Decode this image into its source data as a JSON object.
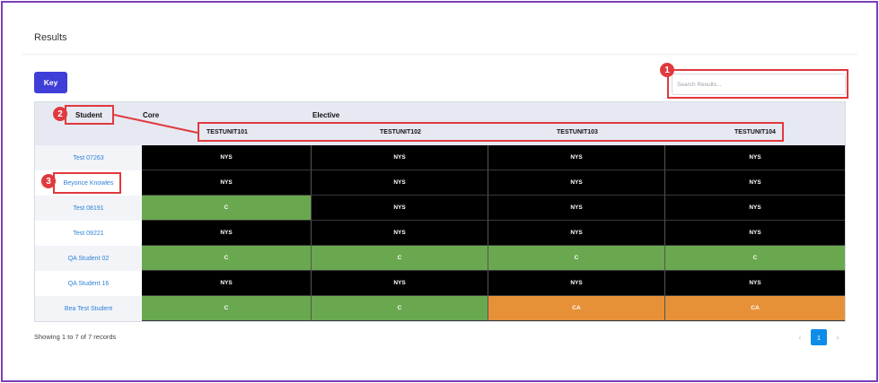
{
  "page": {
    "title": "Results"
  },
  "toolbar": {
    "key_label": "Key"
  },
  "search": {
    "placeholder": "Search Results...",
    "value": ""
  },
  "table": {
    "headers": {
      "student": "Student",
      "core": "Core",
      "elective": "Elective",
      "units": [
        "TESTUNIT101",
        "TESTUNIT102",
        "TESTUNIT103",
        "TESTUNIT104"
      ]
    },
    "rows": [
      {
        "name": "Test 07263",
        "grades": [
          "NYS",
          "NYS",
          "NYS",
          "NYS"
        ]
      },
      {
        "name": "Beyonce Knowles",
        "grades": [
          "NYS",
          "NYS",
          "NYS",
          "NYS"
        ]
      },
      {
        "name": "Test 08191",
        "grades": [
          "C",
          "NYS",
          "NYS",
          "NYS"
        ]
      },
      {
        "name": "Test 09221",
        "grades": [
          "NYS",
          "NYS",
          "NYS",
          "NYS"
        ]
      },
      {
        "name": "QA Student 02",
        "grades": [
          "C",
          "C",
          "C",
          "C"
        ]
      },
      {
        "name": "QA Student 16",
        "grades": [
          "NYS",
          "NYS",
          "NYS",
          "NYS"
        ]
      },
      {
        "name": "Bea Test Student",
        "grades": [
          "C",
          "C",
          "CA",
          "CA"
        ]
      }
    ]
  },
  "grade_colors": {
    "NYS": "#000000",
    "C": "#6aa84f",
    "CA": "#e69138"
  },
  "footer": {
    "showing": "Showing 1 to 7 of 7 records"
  },
  "pagination": {
    "prev": "‹",
    "current": "1",
    "next": "›"
  },
  "annotations": [
    "1",
    "2",
    "3"
  ]
}
